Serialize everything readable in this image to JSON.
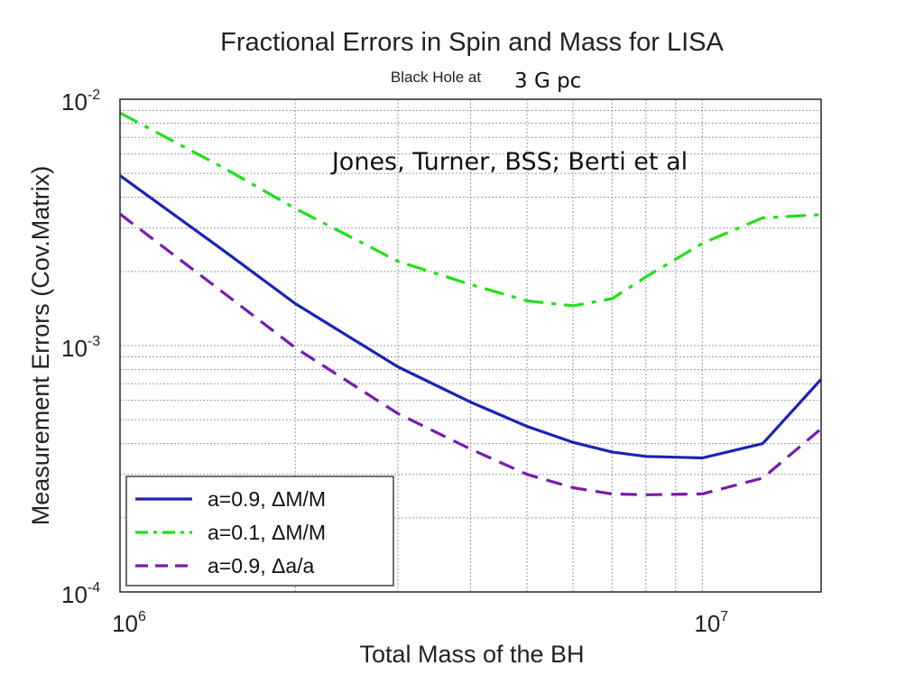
{
  "chart_data": {
    "type": "line",
    "title": "Fractional Errors in Spin and Mass for LISA",
    "subtitle_prefix": "Black Hole at",
    "subtitle_value": "3 G pc",
    "annotation": "Jones, Turner, BSS; Berti et al",
    "xlabel": "Total Mass of the BH",
    "ylabel": "Measurement Errors (Cov.Matrix)",
    "xscale": "log",
    "yscale": "log",
    "xlim": [
      1000000,
      16000000
    ],
    "ylim": [
      0.0001,
      0.01
    ],
    "grid": true,
    "legend_position": "bottom-left",
    "x_ticks": [
      {
        "value": 1000000,
        "base": "10",
        "exp": "6"
      },
      {
        "value": 10000000,
        "base": "10",
        "exp": "7"
      }
    ],
    "y_ticks": [
      {
        "value": 0.01,
        "base": "10",
        "exp": "-2"
      },
      {
        "value": 0.001,
        "base": "10",
        "exp": "-3"
      },
      {
        "value": 0.0001,
        "base": "10",
        "exp": "-4"
      }
    ],
    "series": [
      {
        "name": "a=0.9, ΔM/M",
        "color": "#1a24b4",
        "dash": "solid",
        "points": [
          [
            1000000,
            0.0049
          ],
          [
            1500000,
            0.00245
          ],
          [
            2000000,
            0.00148
          ],
          [
            3000000,
            0.00082
          ],
          [
            4000000,
            0.00059
          ],
          [
            5000000,
            0.00047
          ],
          [
            6000000,
            0.000405
          ],
          [
            7000000,
            0.00037
          ],
          [
            8000000,
            0.000355
          ],
          [
            10000000,
            0.00035
          ],
          [
            12700000,
            0.0004
          ],
          [
            16000000,
            0.00073
          ]
        ]
      },
      {
        "name": "a=0.1, ΔM/M",
        "color": "#22e01a",
        "dash": "dashdot",
        "points": [
          [
            1000000,
            0.0088
          ],
          [
            1500000,
            0.0053
          ],
          [
            2000000,
            0.0036
          ],
          [
            3000000,
            0.0022
          ],
          [
            4000000,
            0.00177
          ],
          [
            5000000,
            0.00152
          ],
          [
            6000000,
            0.00145
          ],
          [
            7000000,
            0.00155
          ],
          [
            8000000,
            0.0019
          ],
          [
            10000000,
            0.0026
          ],
          [
            12700000,
            0.0033
          ],
          [
            16000000,
            0.0034
          ]
        ]
      },
      {
        "name": "a=0.9, Δa/a",
        "color": "#7a1aae",
        "dash": "dashed",
        "points": [
          [
            1000000,
            0.00342
          ],
          [
            1500000,
            0.00165
          ],
          [
            2000000,
            0.00098
          ],
          [
            3000000,
            0.00053
          ],
          [
            4000000,
            0.00038
          ],
          [
            5000000,
            0.0003
          ],
          [
            6000000,
            0.000265
          ],
          [
            7000000,
            0.00025
          ],
          [
            8000000,
            0.000248
          ],
          [
            10000000,
            0.00025
          ],
          [
            12700000,
            0.00029
          ],
          [
            16000000,
            0.00046
          ]
        ]
      }
    ]
  }
}
